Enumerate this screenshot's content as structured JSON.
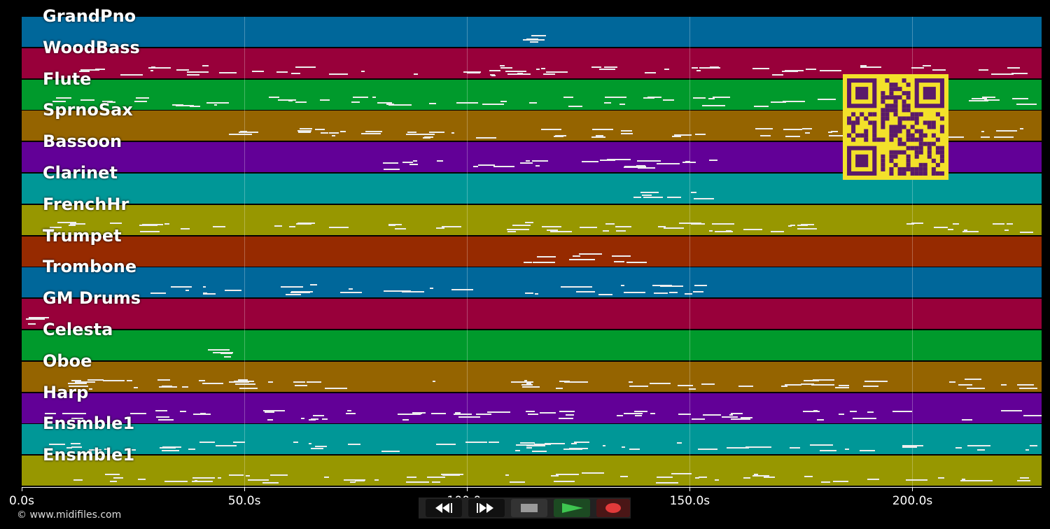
{
  "tracks": [
    {
      "name": "GrandPno",
      "color": "#00679a"
    },
    {
      "name": "WoodBass",
      "color": "#98003a"
    },
    {
      "name": "Flute",
      "color": "#009a2c"
    },
    {
      "name": "SprnoSax",
      "color": "#956400"
    },
    {
      "name": "Bassoon",
      "color": "#620097"
    },
    {
      "name": "Clarinet",
      "color": "#009797"
    },
    {
      "name": "FrenchHr",
      "color": "#979700"
    },
    {
      "name": "Trumpet",
      "color": "#962a00"
    },
    {
      "name": "Trombone",
      "color": "#00679a"
    },
    {
      "name": "GM Drums",
      "color": "#98003a"
    },
    {
      "name": "Celesta",
      "color": "#009a2c"
    },
    {
      "name": "Oboe",
      "color": "#956400"
    },
    {
      "name": "Harp",
      "color": "#620097"
    },
    {
      "name": "Ensmble1",
      "color": "#009797"
    },
    {
      "name": "Ensmble1",
      "color": "#979700"
    }
  ],
  "timeline": {
    "max_seconds": 229,
    "ticks": [
      {
        "value": 0,
        "label": "0.0s"
      },
      {
        "value": 50,
        "label": "50.0s"
      },
      {
        "value": 100,
        "label": "100.0s"
      },
      {
        "value": 150,
        "label": "150.0s"
      },
      {
        "value": 200,
        "label": "200.0s"
      }
    ]
  },
  "footer": {
    "copyright": "© www.midifiles.com"
  },
  "controls": {
    "rewind_icon": "rewind-icon",
    "fast_forward_icon": "fast-forward-icon",
    "stop_icon": "stop-icon",
    "play_icon": "play-icon",
    "record_icon": "record-icon",
    "play_color": "#3ec650",
    "record_color": "#e23a3a"
  },
  "qr_code": {
    "icon": "qr-code-icon",
    "color": "#f3e12a",
    "dark": "#5a1a6a"
  }
}
